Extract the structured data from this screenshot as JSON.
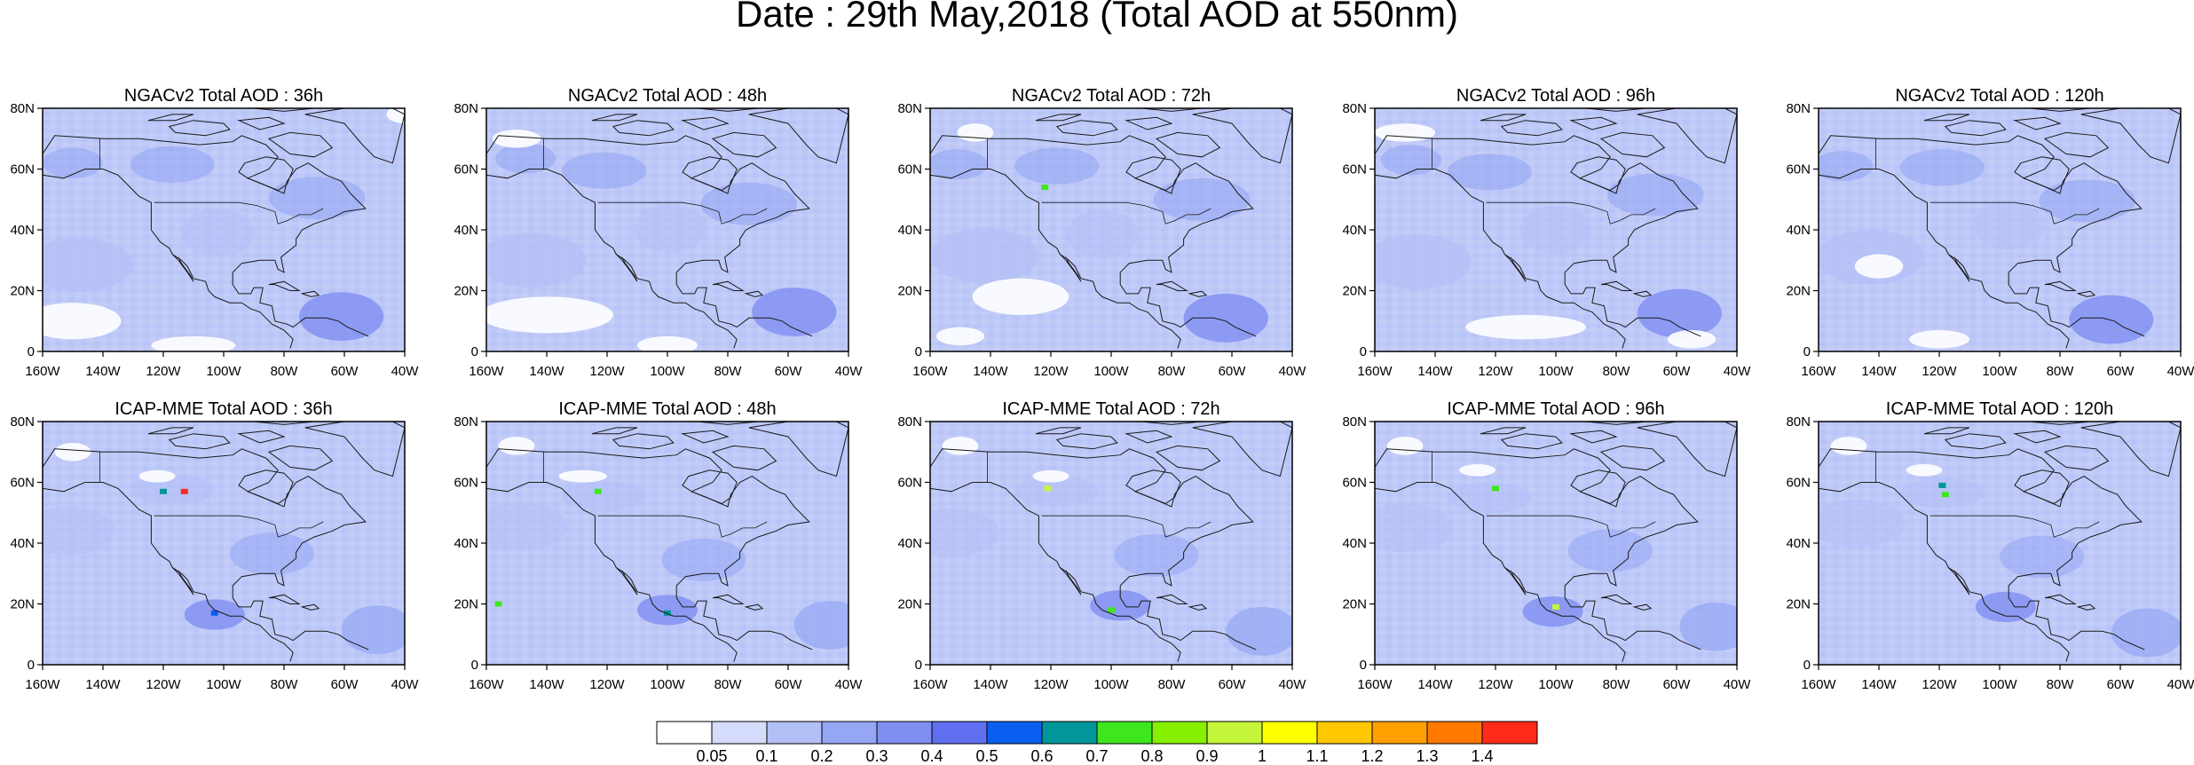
{
  "page_title": "Date : 29th May,2018 (Total AOD at 550nm)",
  "panels": [
    {
      "title": "NGACv2 Total AOD : 36h",
      "model": "NGACv2",
      "lead": "36h"
    },
    {
      "title": "NGACv2 Total AOD : 48h",
      "model": "NGACv2",
      "lead": "48h"
    },
    {
      "title": "NGACv2 Total AOD : 72h",
      "model": "NGACv2",
      "lead": "72h"
    },
    {
      "title": "NGACv2 Total AOD : 96h",
      "model": "NGACv2",
      "lead": "96h"
    },
    {
      "title": "NGACv2 Total AOD : 120h",
      "model": "NGACv2",
      "lead": "120h"
    },
    {
      "title": "ICAP-MME Total AOD : 36h",
      "model": "ICAP-MME",
      "lead": "36h"
    },
    {
      "title": "ICAP-MME Total AOD : 48h",
      "model": "ICAP-MME",
      "lead": "48h"
    },
    {
      "title": "ICAP-MME Total AOD : 72h",
      "model": "ICAP-MME",
      "lead": "72h"
    },
    {
      "title": "ICAP-MME Total AOD : 96h",
      "model": "ICAP-MME",
      "lead": "96h"
    },
    {
      "title": "ICAP-MME Total AOD : 120h",
      "model": "ICAP-MME",
      "lead": "120h"
    }
  ],
  "axes": {
    "lat_labels": [
      "0",
      "20N",
      "40N",
      "60N",
      "80N"
    ],
    "lat_values": [
      0,
      20,
      40,
      60,
      80
    ],
    "lon_labels": [
      "160W",
      "140W",
      "120W",
      "100W",
      "80W",
      "60W",
      "40W"
    ],
    "lon_values": [
      -160,
      -140,
      -120,
      -100,
      -80,
      -60,
      -40
    ],
    "lon_range": [
      -160,
      -40
    ],
    "lat_range": [
      0,
      80
    ]
  },
  "colorbar": {
    "labels": [
      "0.05",
      "0.1",
      "0.2",
      "0.3",
      "0.4",
      "0.5",
      "0.6",
      "0.7",
      "0.8",
      "0.9",
      "1",
      "1.1",
      "1.2",
      "1.3",
      "1.4"
    ],
    "colors": [
      "#ffffff",
      "#d6dcfb",
      "#b3bff7",
      "#94a6f4",
      "#7f8ef1",
      "#5f6ff0",
      "#0b5ff0",
      "#00969a",
      "#3ee61e",
      "#86f000",
      "#c5f53a",
      "#ffff00",
      "#ffc800",
      "#ffa000",
      "#ff7800",
      "#ff2a1a"
    ]
  }
}
